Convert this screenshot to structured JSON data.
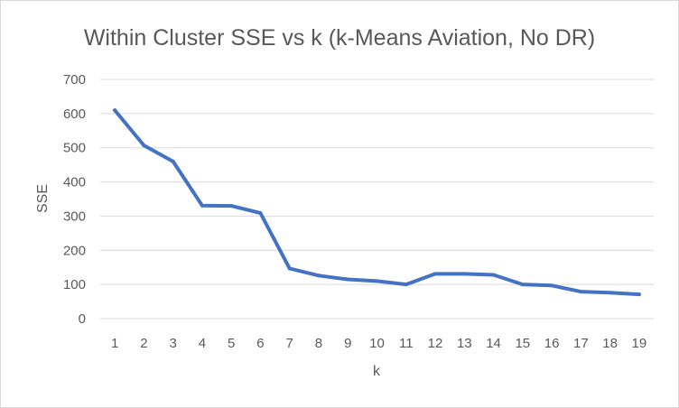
{
  "chart_data": {
    "type": "line",
    "title": "Within Cluster SSE vs k (k-Means Aviation, No DR)",
    "xlabel": "k",
    "ylabel": "SSE",
    "categories": [
      "1",
      "2",
      "3",
      "4",
      "5",
      "6",
      "7",
      "8",
      "9",
      "10",
      "11",
      "12",
      "13",
      "14",
      "15",
      "16",
      "17",
      "18",
      "19"
    ],
    "series": [
      {
        "values": [
          610,
          507,
          460,
          331,
          330,
          309,
          147,
          126,
          115,
          110,
          100,
          131,
          131,
          128,
          100,
          97,
          79,
          76,
          71
        ],
        "color": "#4472c4"
      }
    ],
    "ylim": [
      0,
      700
    ],
    "yticks": [
      0,
      100,
      200,
      300,
      400,
      500,
      600,
      700
    ],
    "grid": true,
    "legend": "none"
  }
}
